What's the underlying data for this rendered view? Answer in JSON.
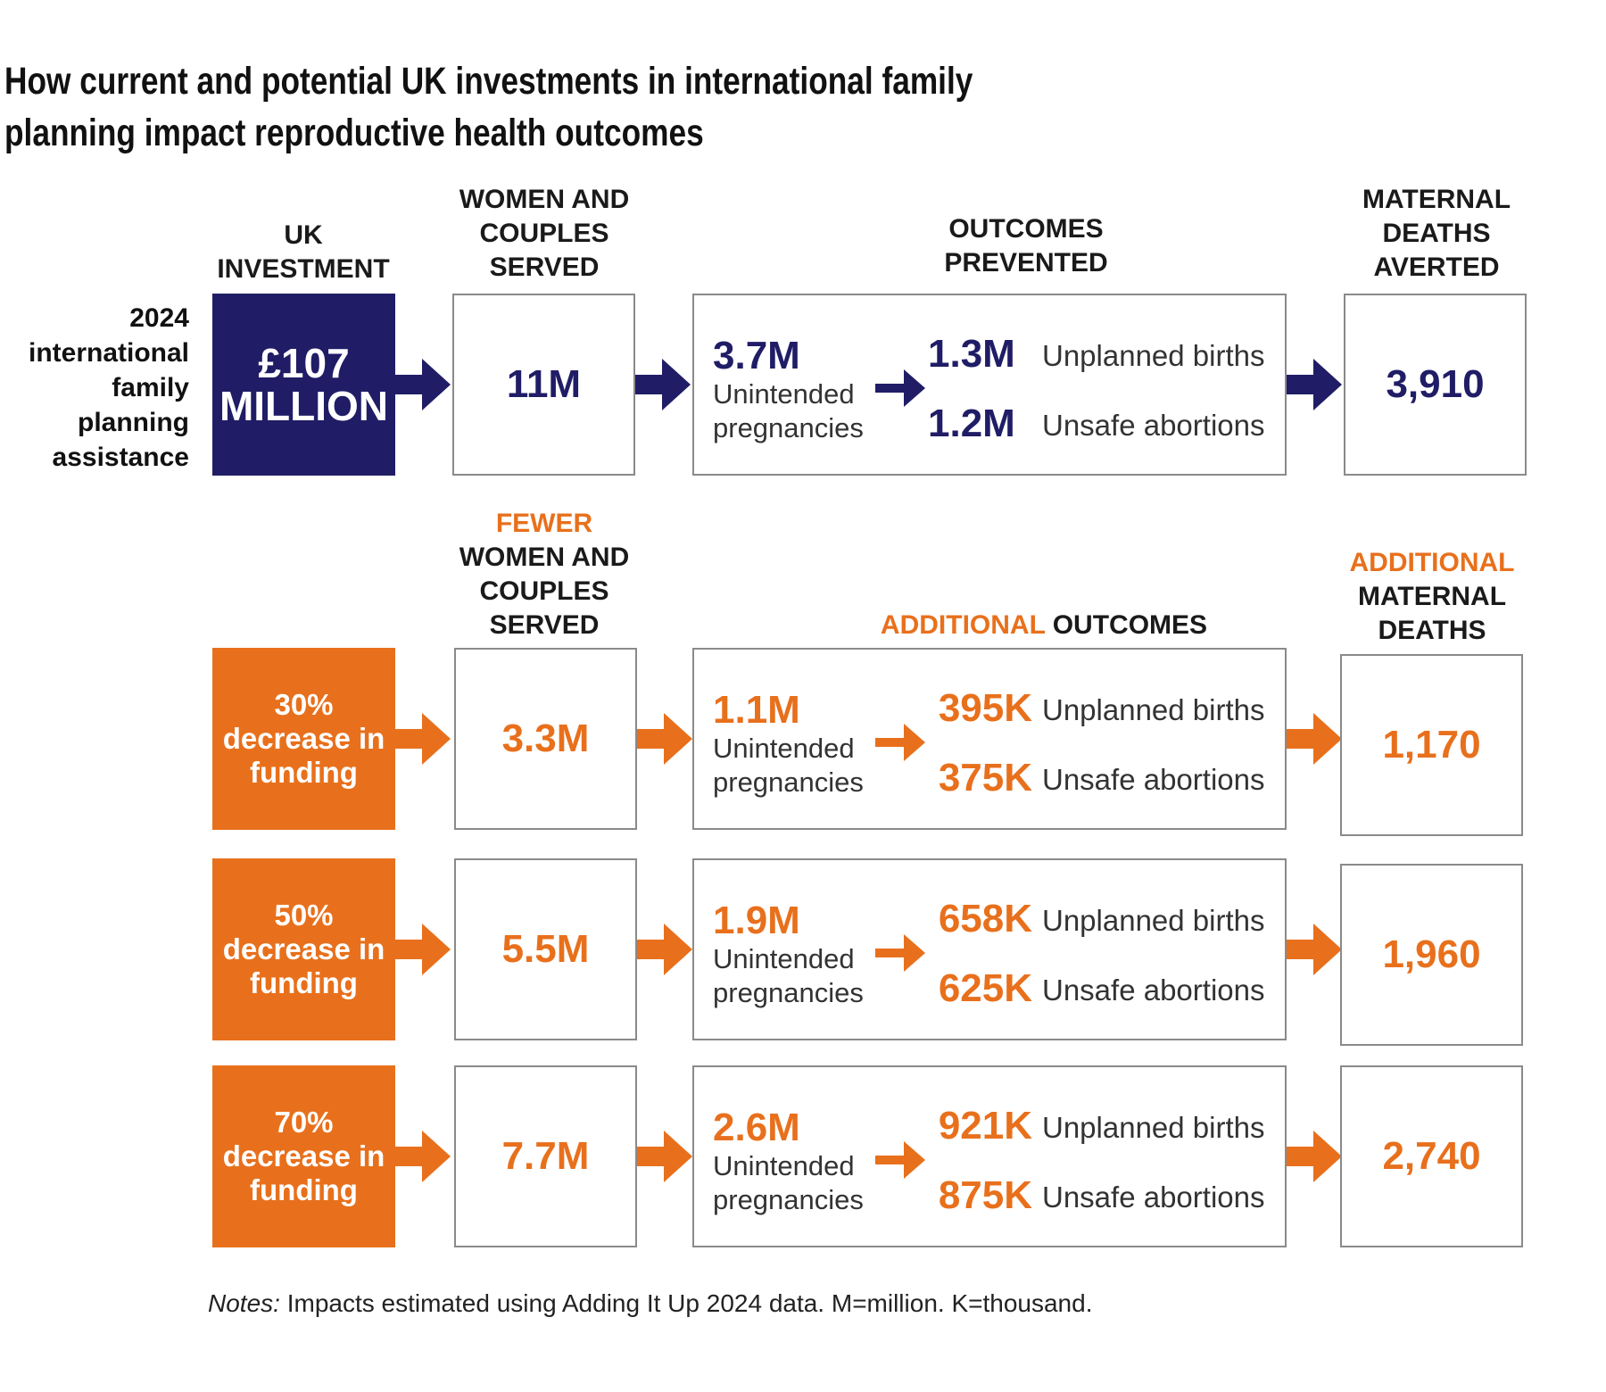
{
  "title": "How current and potential UK investments in international family planning impact reproductive health outcomes",
  "colors": {
    "navy": "#201d66",
    "orange": "#e8701c",
    "border": "#8a8a8a"
  },
  "headers": {
    "investment": "UK INVESTMENT",
    "women": "WOMEN AND COUPLES SERVED",
    "outcomes": "OUTCOMES PREVENTED",
    "deaths": "MATERNAL DEATHS AVERTED",
    "fewer_accent": "FEWER",
    "fewer_rest": "WOMEN AND COUPLES SERVED",
    "add_outcomes_accent": "ADDITIONAL",
    "add_outcomes_rest": "OUTCOMES",
    "add_deaths_accent": "ADDITIONAL",
    "add_deaths_rest": "MATERNAL DEATHS"
  },
  "current": {
    "label": "2024 international family planning assistance",
    "investment_line1": "£107",
    "investment_line2": "MILLION",
    "women": "11M",
    "unintended": "3.7M",
    "unintended_label": "Unintended pregnancies",
    "births": "1.3M",
    "births_label": "Unplanned births",
    "abortions": "1.2M",
    "abortions_label": "Unsafe abortions",
    "deaths": "3,910"
  },
  "scenarios": [
    {
      "pct": "30%",
      "label": "decrease in funding",
      "women": "3.3M",
      "unintended": "1.1M",
      "unintended_label": "Unintended pregnancies",
      "births": "395K",
      "births_label": "Unplanned births",
      "abortions": "375K",
      "abortions_label": "Unsafe abortions",
      "deaths": "1,170"
    },
    {
      "pct": "50%",
      "label": "decrease in funding",
      "women": "5.5M",
      "unintended": "1.9M",
      "unintended_label": "Unintended pregnancies",
      "births": "658K",
      "births_label": "Unplanned births",
      "abortions": "625K",
      "abortions_label": "Unsafe abortions",
      "deaths": "1,960"
    },
    {
      "pct": "70%",
      "label": "decrease in funding",
      "women": "7.7M",
      "unintended": "2.6M",
      "unintended_label": "Unintended pregnancies",
      "births": "921K",
      "births_label": "Unplanned births",
      "abortions": "875K",
      "abortions_label": "Unsafe abortions",
      "deaths": "2,740"
    }
  ],
  "notes_label": "Notes:",
  "notes_text": "Impacts estimated using Adding It Up 2024 data. M=million. K=thousand."
}
